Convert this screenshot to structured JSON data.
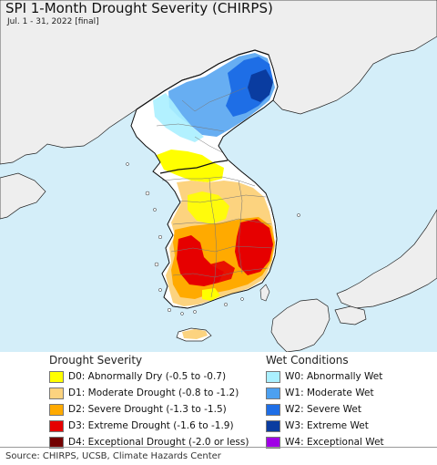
{
  "header": {
    "title": "SPI 1-Month Drought Severity (CHIRPS)",
    "subtitle": "Jul. 1 - 31, 2022 [final]"
  },
  "colors": {
    "sea": "#d4eef9",
    "land": "#eeeeee",
    "korea_land": "#ffffff",
    "D0": "#ffff00",
    "D1": "#fcd37f",
    "D2": "#ffaa00",
    "D3": "#e60000",
    "D4": "#730000",
    "W0": "#aaf0ff",
    "W1": "#4ca0f0",
    "W2": "#1e6ee6",
    "W3": "#0a3ca0",
    "W4": "#a000e6"
  },
  "legend": {
    "drought_heading": "Drought Severity",
    "wet_heading": "Wet Conditions",
    "drought_items": [
      {
        "code": "D0",
        "label": "D0: Abnormally Dry (-0.5 to -0.7)"
      },
      {
        "code": "D1",
        "label": "D1: Moderate Drought (-0.8 to -1.2)"
      },
      {
        "code": "D2",
        "label": "D2: Severe Drought (-1.3 to -1.5)"
      },
      {
        "code": "D3",
        "label": "D3: Extreme Drought (-1.6 to -1.9)"
      },
      {
        "code": "D4",
        "label": "D4: Exceptional Drought (-2.0 or less)"
      }
    ],
    "wet_items": [
      {
        "code": "W0",
        "label": "W0: Abnormally Wet"
      },
      {
        "code": "W1",
        "label": "W1: Moderate Wet"
      },
      {
        "code": "W2",
        "label": "W2: Severe Wet"
      },
      {
        "code": "W3",
        "label": "W3: Extreme Wet"
      },
      {
        "code": "W4",
        "label": "W4: Exceptional Wet"
      }
    ]
  },
  "footer": {
    "source": "Source: CHIRPS, UCSB, Climate Hazards Center"
  }
}
